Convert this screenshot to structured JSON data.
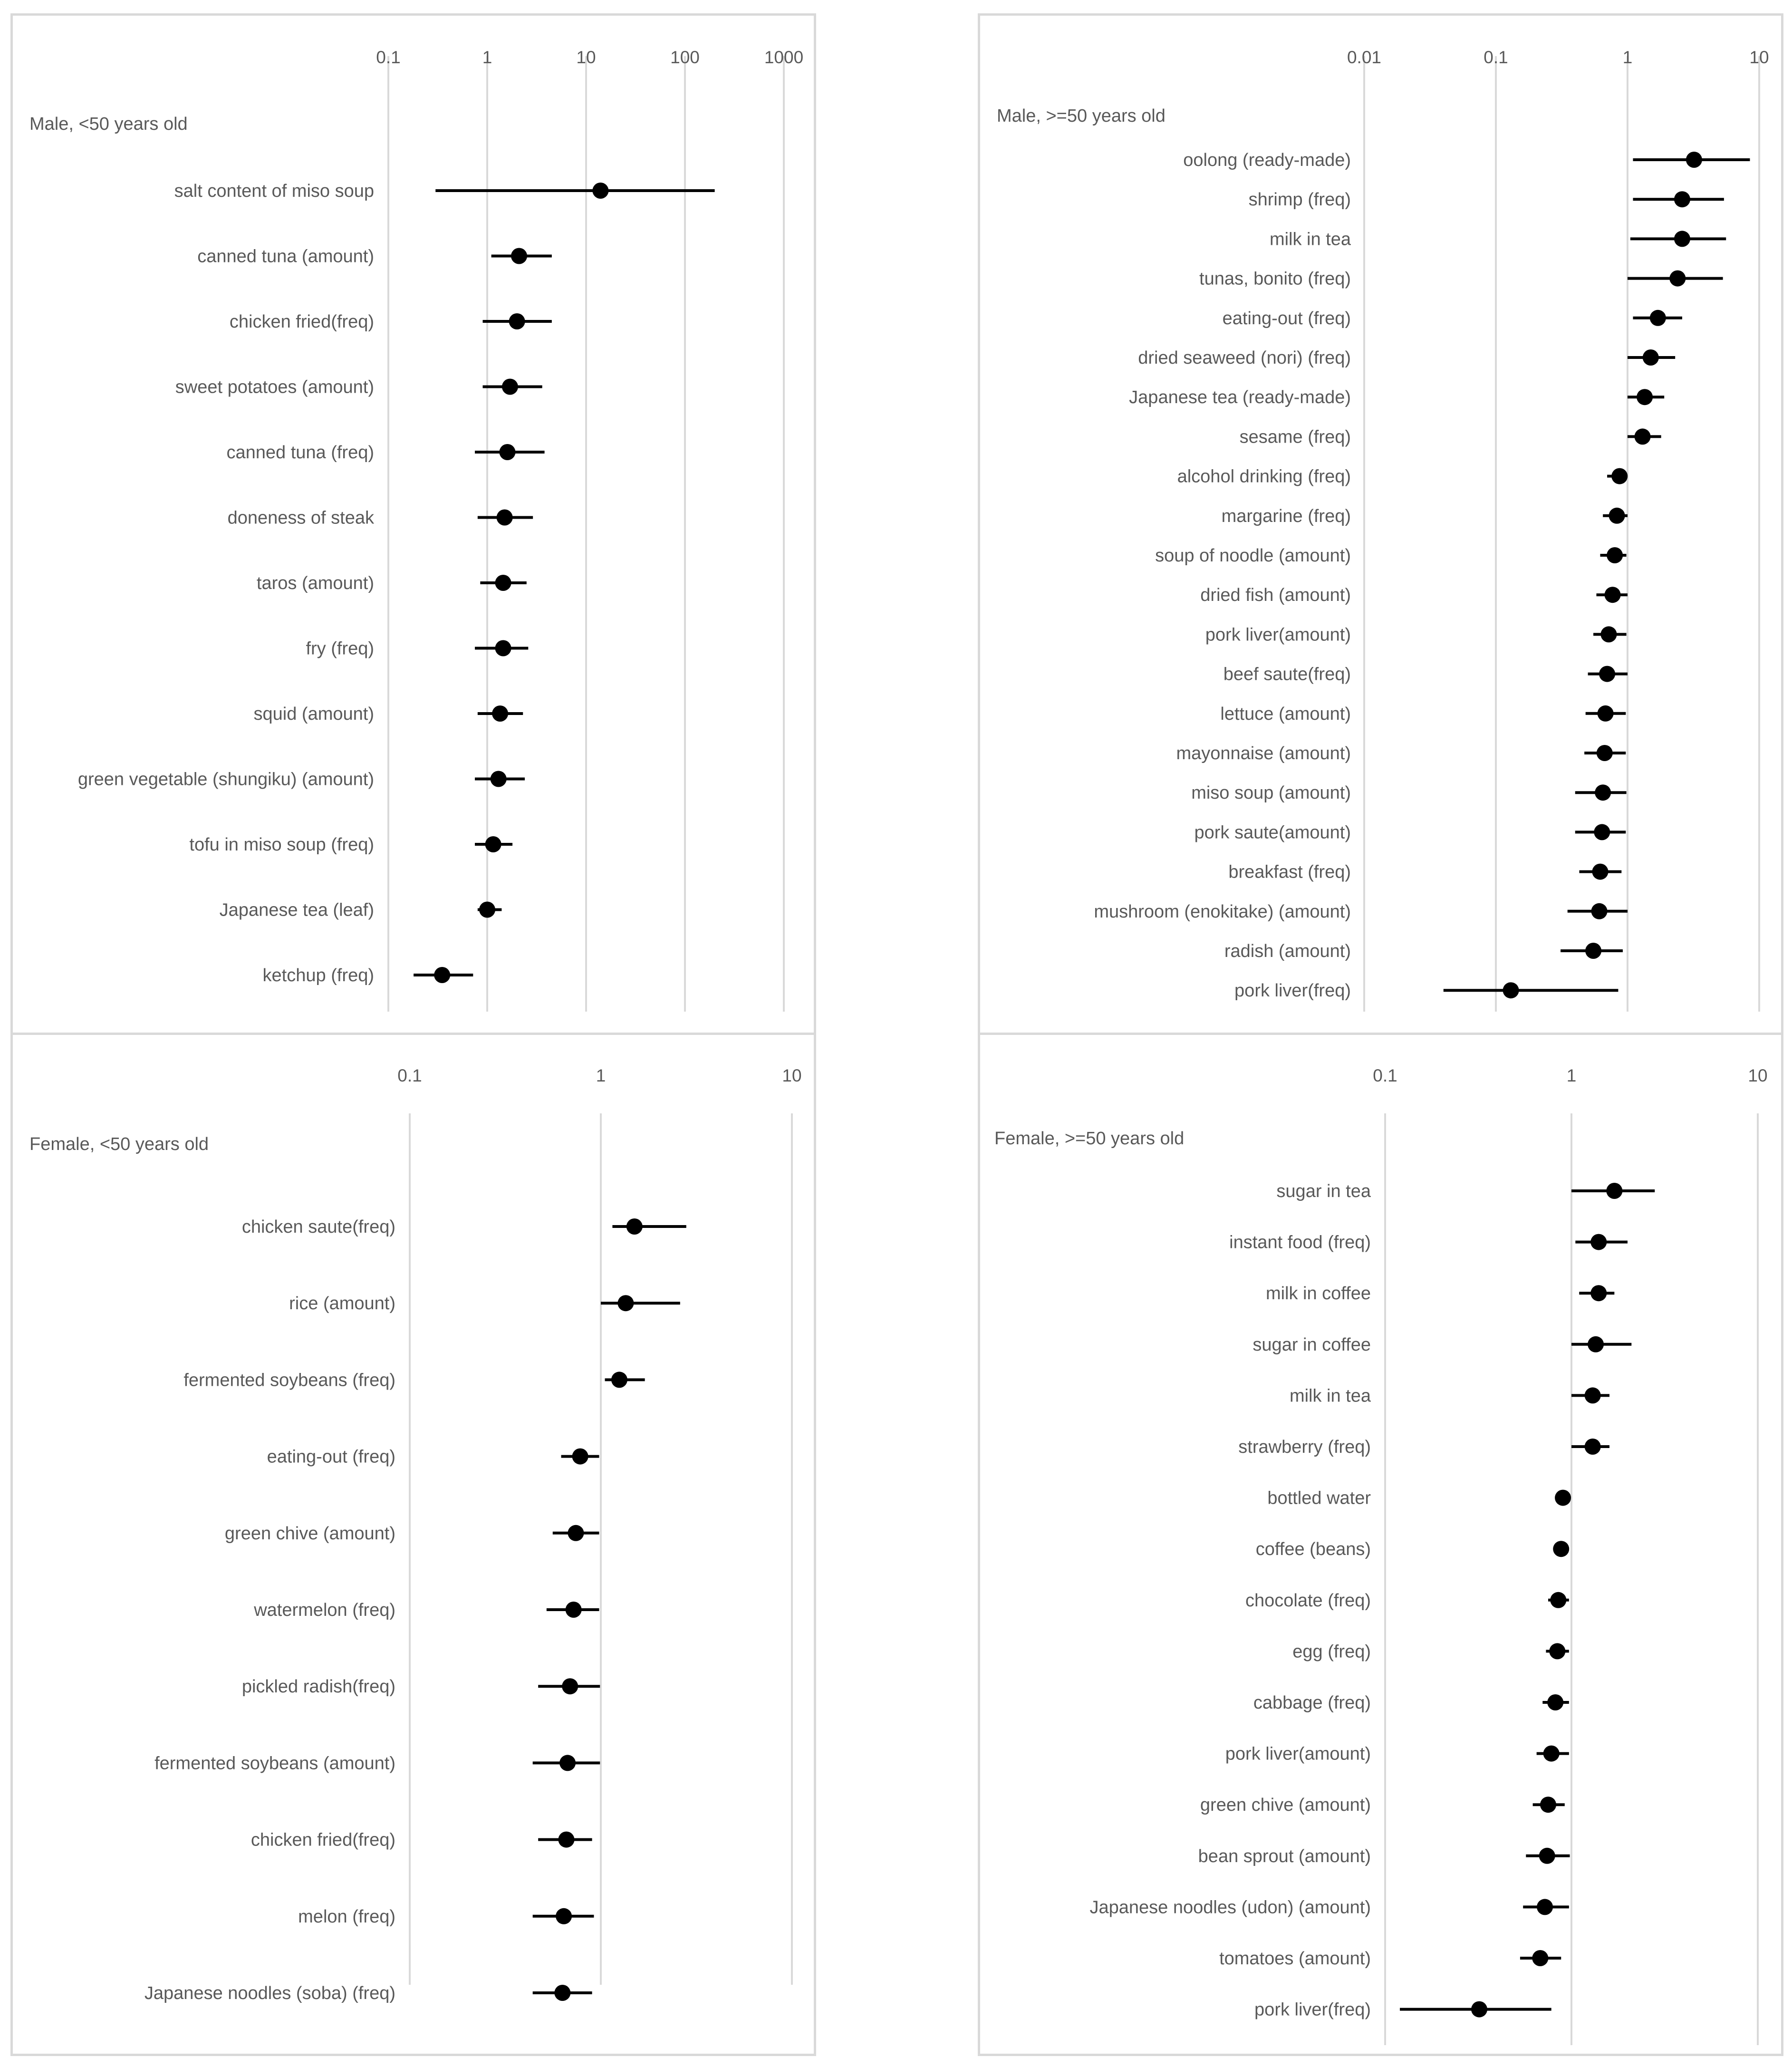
{
  "chart_data": [
    {
      "type": "scatter",
      "title": "Male, <50 years old",
      "x_scale": "log",
      "xlim": [
        0.05,
        1000
      ],
      "x_ticks": [
        "0.1",
        "1",
        "10",
        "100",
        "1000"
      ],
      "x_tick_values": [
        0.1,
        1,
        10,
        100,
        1000
      ],
      "grid": true,
      "marker_color": "#000000",
      "rows": [
        {
          "label": "salt content of miso soup",
          "est": 14,
          "lo": 0.3,
          "hi": 200
        },
        {
          "label": "canned tuna (amount)",
          "est": 2.1,
          "lo": 1.1,
          "hi": 4.5
        },
        {
          "label": "chicken fried(freq)",
          "est": 2.0,
          "lo": 0.9,
          "hi": 4.5
        },
        {
          "label": "sweet potatoes (amount)",
          "est": 1.7,
          "lo": 0.9,
          "hi": 3.6
        },
        {
          "label": "canned tuna (freq)",
          "est": 1.6,
          "lo": 0.75,
          "hi": 3.8
        },
        {
          "label": "doneness of steak",
          "est": 1.5,
          "lo": 0.8,
          "hi": 2.9
        },
        {
          "label": "taros (amount)",
          "est": 1.45,
          "lo": 0.85,
          "hi": 2.5
        },
        {
          "label": "fry (freq)",
          "est": 1.45,
          "lo": 0.75,
          "hi": 2.6
        },
        {
          "label": "squid (amount)",
          "est": 1.35,
          "lo": 0.8,
          "hi": 2.3
        },
        {
          "label": "green vegetable (shungiku) (amount)",
          "est": 1.3,
          "lo": 0.75,
          "hi": 2.4
        },
        {
          "label": "tofu in miso soup (freq)",
          "est": 1.15,
          "lo": 0.75,
          "hi": 1.8
        },
        {
          "label": "Japanese tea (leaf)",
          "est": 1.0,
          "lo": 0.8,
          "hi": 1.4
        },
        {
          "label": "ketchup (freq)",
          "est": 0.35,
          "lo": 0.18,
          "hi": 0.72
        }
      ]
    },
    {
      "type": "scatter",
      "title": "Male, >=50 years old",
      "x_scale": "log",
      "xlim": [
        0.003,
        10
      ],
      "x_ticks": [
        "0.01",
        "0.1",
        "1",
        "10"
      ],
      "x_tick_values": [
        0.01,
        0.1,
        1,
        10
      ],
      "grid": true,
      "marker_color": "#000000",
      "rows": [
        {
          "label": "oolong (ready-made)",
          "est": 3.2,
          "lo": 1.1,
          "hi": 8.5
        },
        {
          "label": "shrimp (freq)",
          "est": 2.6,
          "lo": 1.1,
          "hi": 5.4
        },
        {
          "label": "milk in tea",
          "est": 2.6,
          "lo": 1.05,
          "hi": 5.6
        },
        {
          "label": "tunas, bonito (freq)",
          "est": 2.4,
          "lo": 1.0,
          "hi": 5.3
        },
        {
          "label": "eating-out (freq)",
          "est": 1.7,
          "lo": 1.1,
          "hi": 2.6
        },
        {
          "label": "dried seaweed (nori) (freq)",
          "est": 1.5,
          "lo": 1.0,
          "hi": 2.3
        },
        {
          "label": "Japanese tea (ready-made)",
          "est": 1.35,
          "lo": 1.0,
          "hi": 1.9
        },
        {
          "label": "sesame (freq)",
          "est": 1.3,
          "lo": 1.0,
          "hi": 1.8
        },
        {
          "label": "alcohol drinking (freq)",
          "est": 0.87,
          "lo": 0.7,
          "hi": 1.0
        },
        {
          "label": "margarine (freq)",
          "est": 0.83,
          "lo": 0.65,
          "hi": 1.0
        },
        {
          "label": "soup of noodle (amount)",
          "est": 0.8,
          "lo": 0.62,
          "hi": 0.98
        },
        {
          "label": "dried fish (amount)",
          "est": 0.77,
          "lo": 0.58,
          "hi": 1.0
        },
        {
          "label": "pork liver(amount)",
          "est": 0.72,
          "lo": 0.55,
          "hi": 0.98
        },
        {
          "label": "beef saute(freq)",
          "est": 0.7,
          "lo": 0.5,
          "hi": 1.0
        },
        {
          "label": "lettuce (amount)",
          "est": 0.68,
          "lo": 0.48,
          "hi": 0.97
        },
        {
          "label": "mayonnaise (amount)",
          "est": 0.67,
          "lo": 0.47,
          "hi": 0.97
        },
        {
          "label": "miso soup (amount)",
          "est": 0.65,
          "lo": 0.4,
          "hi": 0.98
        },
        {
          "label": "pork saute(amount)",
          "est": 0.64,
          "lo": 0.4,
          "hi": 0.97
        },
        {
          "label": "breakfast (freq)",
          "est": 0.62,
          "lo": 0.43,
          "hi": 0.9
        },
        {
          "label": "mushroom (enokitake) (amount)",
          "est": 0.61,
          "lo": 0.35,
          "hi": 1.0
        },
        {
          "label": "radish (amount)",
          "est": 0.55,
          "lo": 0.31,
          "hi": 0.92
        },
        {
          "label": "pork liver(freq)",
          "est": 0.13,
          "lo": 0.04,
          "hi": 0.85
        }
      ]
    },
    {
      "type": "scatter",
      "title": "Female, <50 years old",
      "x_scale": "log",
      "xlim": [
        0.03,
        10
      ],
      "x_ticks": [
        "0.1",
        "1",
        "10"
      ],
      "x_tick_values": [
        0.1,
        1,
        10
      ],
      "grid": true,
      "marker_color": "#000000",
      "rows": [
        {
          "label": "chicken saute(freq)",
          "est": 1.5,
          "lo": 1.15,
          "hi": 2.8
        },
        {
          "label": "rice (amount)",
          "est": 1.35,
          "lo": 1.0,
          "hi": 2.6
        },
        {
          "label": "fermented soybeans (freq)",
          "est": 1.25,
          "lo": 1.05,
          "hi": 1.7
        },
        {
          "label": "eating-out (freq)",
          "est": 0.78,
          "lo": 0.62,
          "hi": 0.98
        },
        {
          "label": "green chive (amount)",
          "est": 0.74,
          "lo": 0.56,
          "hi": 0.98
        },
        {
          "label": "watermelon (freq)",
          "est": 0.72,
          "lo": 0.52,
          "hi": 0.98
        },
        {
          "label": "pickled radish(freq)",
          "est": 0.69,
          "lo": 0.47,
          "hi": 0.99
        },
        {
          "label": "fermented soybeans (amount)",
          "est": 0.67,
          "lo": 0.44,
          "hi": 0.99
        },
        {
          "label": "chicken fried(freq)",
          "est": 0.66,
          "lo": 0.47,
          "hi": 0.9
        },
        {
          "label": "melon (freq)",
          "est": 0.64,
          "lo": 0.44,
          "hi": 0.92
        },
        {
          "label": "Japanese noodles (soba) (freq)",
          "est": 0.63,
          "lo": 0.44,
          "hi": 0.9
        }
      ]
    },
    {
      "type": "scatter",
      "title": "Female, >=50 years old",
      "x_scale": "log",
      "xlim": [
        0.01,
        10
      ],
      "x_ticks": [
        "0.1",
        "1",
        "10"
      ],
      "x_tick_values": [
        0.1,
        1,
        10
      ],
      "grid": true,
      "marker_color": "#000000",
      "rows": [
        {
          "label": "sugar in tea",
          "est": 1.7,
          "lo": 1.0,
          "hi": 2.8
        },
        {
          "label": "instant food (freq)",
          "est": 1.4,
          "lo": 1.05,
          "hi": 2.0
        },
        {
          "label": "milk in coffee",
          "est": 1.4,
          "lo": 1.1,
          "hi": 1.7
        },
        {
          "label": "sugar in coffee",
          "est": 1.35,
          "lo": 1.0,
          "hi": 2.1
        },
        {
          "label": "milk in tea",
          "est": 1.3,
          "lo": 1.0,
          "hi": 1.6
        },
        {
          "label": "strawberry (freq)",
          "est": 1.3,
          "lo": 1.0,
          "hi": 1.6
        },
        {
          "label": "bottled water",
          "est": 0.9,
          "lo": 0.88,
          "hi": 0.93
        },
        {
          "label": "coffee (beans)",
          "est": 0.88,
          "lo": 0.82,
          "hi": 0.95
        },
        {
          "label": "chocolate (freq)",
          "est": 0.85,
          "lo": 0.75,
          "hi": 0.97
        },
        {
          "label": "egg (freq)",
          "est": 0.84,
          "lo": 0.73,
          "hi": 0.97
        },
        {
          "label": "cabbage (freq)",
          "est": 0.82,
          "lo": 0.7,
          "hi": 0.97
        },
        {
          "label": "pork liver(amount)",
          "est": 0.78,
          "lo": 0.65,
          "hi": 0.97
        },
        {
          "label": "green chive (amount)",
          "est": 0.75,
          "lo": 0.62,
          "hi": 0.92
        },
        {
          "label": "bean sprout (amount)",
          "est": 0.74,
          "lo": 0.57,
          "hi": 0.98
        },
        {
          "label": "Japanese noodles (udon) (amount)",
          "est": 0.72,
          "lo": 0.55,
          "hi": 0.97
        },
        {
          "label": "tomatoes (amount)",
          "est": 0.68,
          "lo": 0.53,
          "hi": 0.88
        },
        {
          "label": "pork liver(freq)",
          "est": 0.32,
          "lo": 0.12,
          "hi": 0.78
        }
      ]
    }
  ]
}
